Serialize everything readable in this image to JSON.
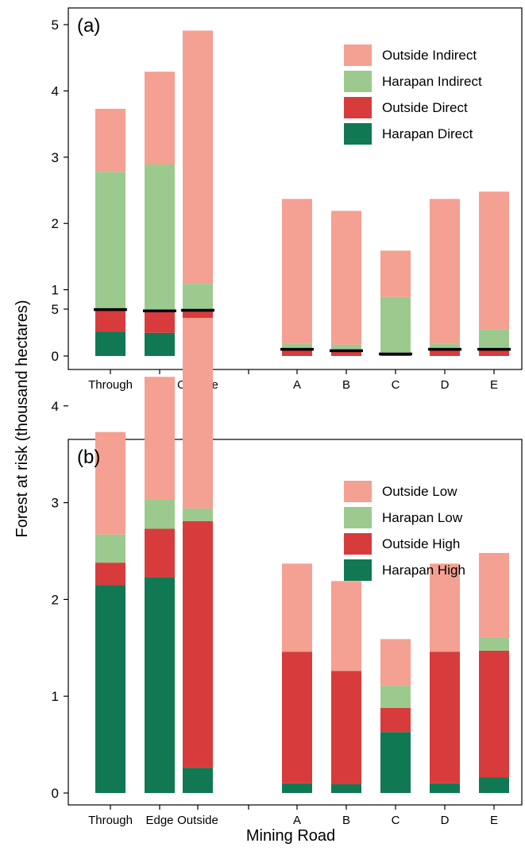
{
  "figure": {
    "ylabel": "Forest at risk (thousand hectares)",
    "xlabel": "Mining Road"
  },
  "chart_data": [
    {
      "type": "bar",
      "stacked": true,
      "panel_label": "(a)",
      "categories": [
        "Through",
        "Edge",
        "Outside",
        "A",
        "B",
        "C",
        "D",
        "E"
      ],
      "ylim": [
        0,
        5.2
      ],
      "yticks": [
        0,
        1,
        2,
        3,
        4,
        5
      ],
      "legend_position": "top-right",
      "series": [
        {
          "name": "Harapan Direct",
          "color": "#107853",
          "values": [
            0.37,
            0.35,
            0.0,
            0.0,
            0.0,
            0.0,
            0.0,
            0.0
          ]
        },
        {
          "name": "Outside Direct",
          "color": "#d83b3c",
          "values": [
            0.33,
            0.33,
            0.69,
            0.1,
            0.08,
            0.03,
            0.1,
            0.1
          ]
        },
        {
          "name": "Harapan Indirect",
          "color": "#9cca8e",
          "values": [
            2.08,
            2.21,
            0.4,
            0.09,
            0.09,
            0.86,
            0.09,
            0.3
          ]
        },
        {
          "name": "Outside Indirect",
          "color": "#f4a092",
          "values": [
            0.95,
            1.4,
            3.82,
            2.18,
            2.02,
            0.7,
            2.18,
            2.08
          ]
        }
      ],
      "direct_marker_values": [
        0.7,
        0.68,
        0.69,
        0.1,
        0.08,
        0.03,
        0.1,
        0.1
      ],
      "direct_marker_color": "#000000"
    },
    {
      "type": "bar",
      "stacked": true,
      "panel_label": "(b)",
      "categories": [
        "Through",
        "Edge",
        "Outside",
        "A",
        "B",
        "C",
        "D",
        "E"
      ],
      "ylim": [
        0,
        5.2
      ],
      "yticks": [
        0,
        1,
        2,
        3,
        4,
        5
      ],
      "legend_position": "top-right",
      "series": [
        {
          "name": "Harapan High",
          "color": "#107853",
          "values": [
            2.15,
            2.23,
            0.26,
            0.1,
            0.09,
            0.63,
            0.1,
            0.16
          ]
        },
        {
          "name": "Outside High",
          "color": "#d83b3c",
          "values": [
            0.23,
            0.5,
            2.55,
            1.36,
            1.17,
            0.25,
            1.36,
            1.31
          ]
        },
        {
          "name": "Harapan Low",
          "color": "#9cca8e",
          "values": [
            0.29,
            0.3,
            0.13,
            0.0,
            0.0,
            0.23,
            0.0,
            0.14
          ]
        },
        {
          "name": "Outside Low",
          "color": "#f4a092",
          "values": [
            1.06,
            1.27,
            1.97,
            0.91,
            0.93,
            0.48,
            0.91,
            0.87
          ]
        }
      ]
    }
  ]
}
